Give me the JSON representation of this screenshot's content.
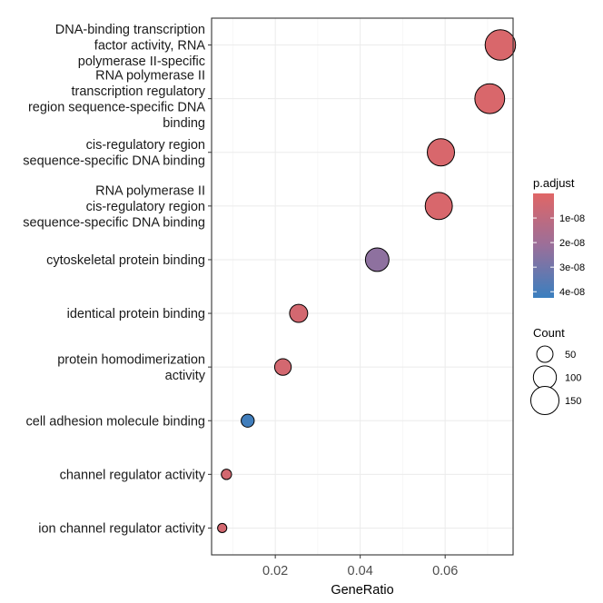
{
  "chart_data": {
    "type": "scatter",
    "xlabel": "GeneRatio",
    "ylabel": "",
    "xlim": [
      0.005,
      0.076
    ],
    "xticks": [
      0.02,
      0.04,
      0.06
    ],
    "xtick_labels": [
      "0.02",
      "0.04",
      "0.06"
    ],
    "grid": true,
    "legend_position": "right",
    "color_legend": {
      "title": "p.adjust",
      "ticks": [
        1e-08,
        2e-08,
        3e-08,
        4e-08
      ],
      "tick_labels": [
        "1e-08",
        "2e-08",
        "3e-08",
        "4e-08"
      ],
      "range": [
        0,
        4.25e-08
      ],
      "low_color": "#E06666",
      "high_color": "#3A7FBF"
    },
    "size_legend": {
      "title": "Count",
      "values": [
        50,
        100,
        150
      ],
      "labels": [
        "50",
        "100",
        "150"
      ]
    },
    "count_max": 180,
    "categories": [
      [
        "DNA-binding transcription",
        "factor activity, RNA",
        "polymerase II-specific"
      ],
      [
        "RNA polymerase II",
        "transcription regulatory",
        "region sequence-specific DNA",
        "binding"
      ],
      [
        "cis-regulatory region",
        "sequence-specific DNA binding"
      ],
      [
        "RNA polymerase II",
        "cis-regulatory region",
        "sequence-specific DNA binding"
      ],
      [
        "cytoskeletal protein binding"
      ],
      [
        "identical protein binding"
      ],
      [
        "protein homodimerization",
        "activity"
      ],
      [
        "cell adhesion molecule binding"
      ],
      [
        "channel regulator activity"
      ],
      [
        "ion channel regulator activity"
      ]
    ],
    "points": [
      {
        "x": 0.073,
        "count": 175,
        "p_adjust": 2e-09
      },
      {
        "x": 0.0705,
        "count": 168,
        "p_adjust": 2e-09
      },
      {
        "x": 0.059,
        "count": 140,
        "p_adjust": 2.5e-09
      },
      {
        "x": 0.0585,
        "count": 139,
        "p_adjust": 2.5e-09
      },
      {
        "x": 0.044,
        "count": 105,
        "p_adjust": 2.4e-08
      },
      {
        "x": 0.0255,
        "count": 62,
        "p_adjust": 4e-09
      },
      {
        "x": 0.0218,
        "count": 52,
        "p_adjust": 4e-09
      },
      {
        "x": 0.0135,
        "count": 32,
        "p_adjust": 4.1e-08
      },
      {
        "x": 0.0085,
        "count": 20,
        "p_adjust": 4e-09
      },
      {
        "x": 0.0075,
        "count": 16,
        "p_adjust": 4e-09
      }
    ]
  }
}
